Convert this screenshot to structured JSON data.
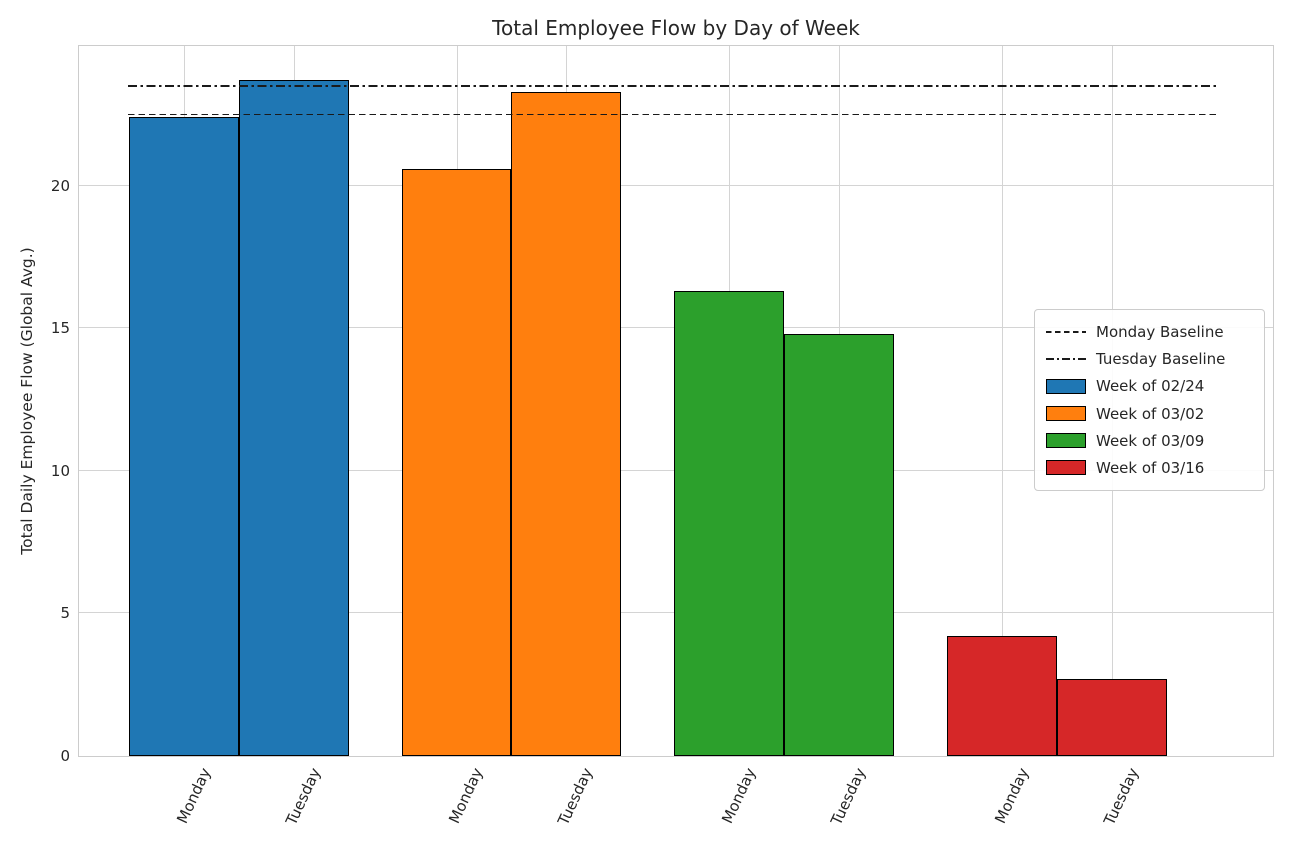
{
  "chart_data": {
    "type": "bar",
    "title": "Total Employee Flow by Day of Week",
    "xlabel": "",
    "ylabel": "Total Daily Employee Flow (Global Avg.)",
    "categories": [
      "Monday",
      "Tuesday"
    ],
    "series": [
      {
        "name": "Week of 02/24",
        "color": "#1f77b4",
        "values": [
          22.4,
          23.7
        ]
      },
      {
        "name": "Week of 03/02",
        "color": "#ff7f0e",
        "values": [
          20.6,
          23.3
        ]
      },
      {
        "name": "Week of 03/09",
        "color": "#2ca02c",
        "values": [
          16.3,
          14.8
        ]
      },
      {
        "name": "Week of 03/16",
        "color": "#d62728",
        "values": [
          4.2,
          2.7
        ]
      }
    ],
    "baselines": [
      {
        "name": "Monday Baseline",
        "value": 22.5,
        "style": "dashed"
      },
      {
        "name": "Tuesday Baseline",
        "value": 23.5,
        "style": "dashdot"
      }
    ],
    "yticks": [
      0,
      5,
      10,
      15,
      20
    ],
    "ylim": [
      0,
      24.9
    ],
    "grid": true,
    "bar_edge_color": "#000000",
    "xtick_rotation": 65,
    "legend_position": "center right"
  }
}
